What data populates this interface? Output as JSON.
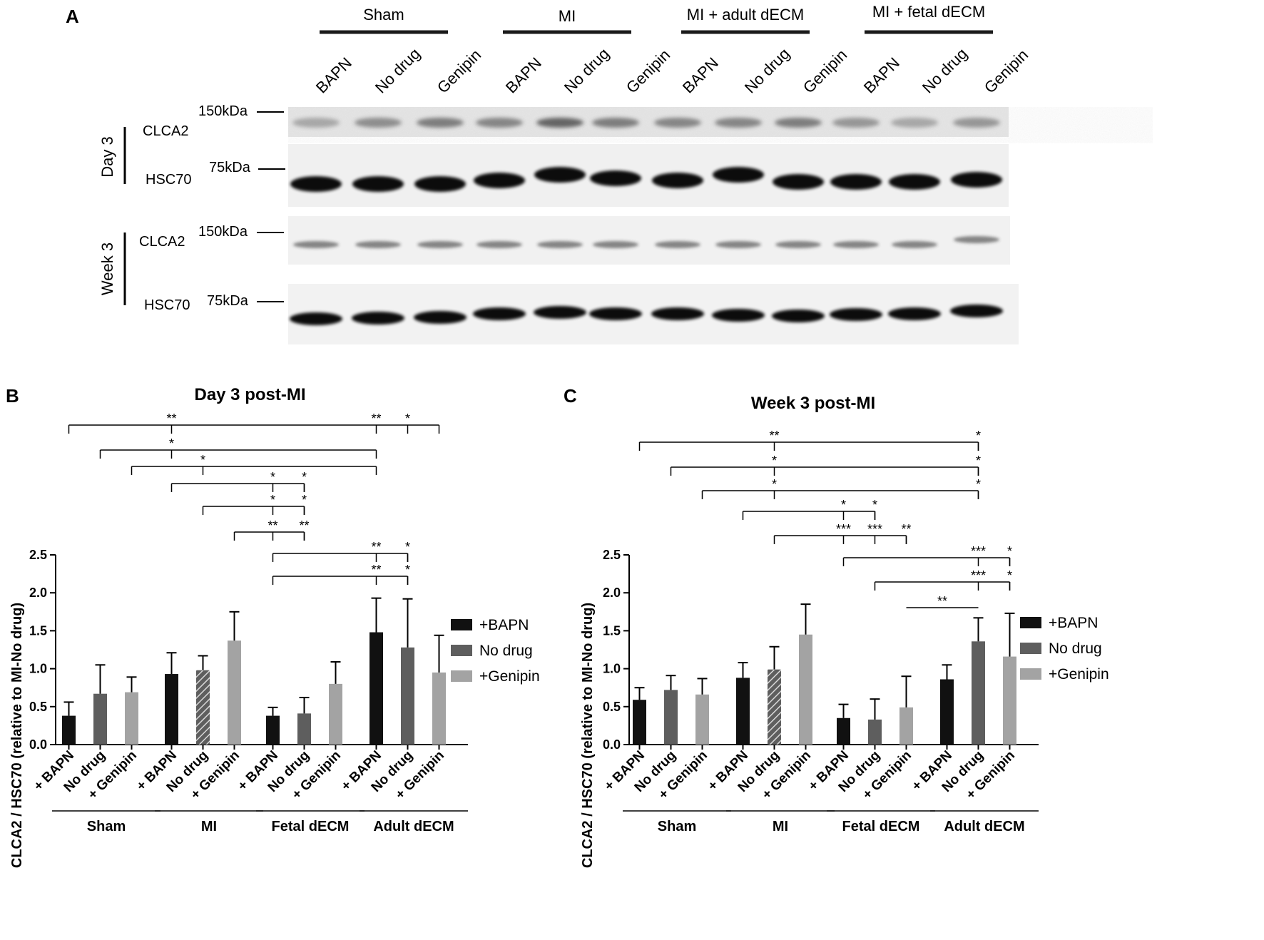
{
  "panel_a": {
    "letter": "A",
    "group_headers": [
      "Sham",
      "MI",
      "MI + adult dECM",
      "MI + fetal dECM"
    ],
    "lane_labels": [
      "BAPN",
      "No drug",
      "Genipin",
      "BAPN",
      "No drug",
      "Genipin",
      "BAPN",
      "No drug",
      "Genipin",
      "BAPN",
      "No drug",
      "Genipin"
    ],
    "timepoints": [
      {
        "label": "Day 3",
        "rows": [
          {
            "protein": "CLCA2",
            "marker": "150kDa"
          },
          {
            "protein": "HSC70",
            "marker": "75kDa"
          }
        ]
      },
      {
        "label": "Week 3",
        "rows": [
          {
            "protein": "CLCA2",
            "marker": "150kDa"
          },
          {
            "protein": "HSC70",
            "marker": "75kDa"
          }
        ]
      }
    ]
  },
  "chart_data": [
    {
      "panel_letter": "B",
      "type": "bar",
      "title": "Day 3 post-MI",
      "ylabel": "CLCA2 / HSC70 (relative to MI-No drug)",
      "ylim": [
        0,
        2.5
      ],
      "yticks": [
        "0.0",
        "0.5",
        "1.0",
        "1.5",
        "2.0",
        "2.5"
      ],
      "groups": [
        "Sham",
        "MI",
        "Fetal dECM",
        "Adult dECM"
      ],
      "tick_labels": [
        "+ BAPN",
        "No drug",
        "+ Genipin"
      ],
      "legend": [
        "+BAPN",
        "No drug",
        "+Genipin"
      ],
      "series": [
        {
          "name": "+BAPN",
          "color": "#111111",
          "values": [
            0.38,
            0.93,
            0.38,
            1.48
          ],
          "errors": [
            0.18,
            0.28,
            0.11,
            0.45
          ]
        },
        {
          "name": "No drug",
          "color": "#5e5e5e",
          "values": [
            0.67,
            0.98,
            0.41,
            1.28
          ],
          "errors": [
            0.38,
            0.19,
            0.21,
            0.64
          ]
        },
        {
          "name": "+Genipin",
          "color": "#a3a3a3",
          "values": [
            0.69,
            1.37,
            0.8,
            0.95
          ],
          "errors": [
            0.2,
            0.38,
            0.29,
            0.49
          ]
        }
      ],
      "hatched_bar": "MI No drug",
      "significance": [
        {
          "from": "Sham +BAPN",
          "to": "Adult dECM +Genipin",
          "marks": [
            {
              "at": "MI +BAPN",
              "text": "**"
            },
            {
              "at": "Adult dECM +BAPN",
              "text": "**"
            },
            {
              "at": "Adult dECM No drug",
              "text": "*"
            }
          ]
        },
        {
          "from": "Sham No drug",
          "to": "Adult dECM +BAPN",
          "marks": [
            {
              "at": "MI +BAPN",
              "text": "*"
            }
          ]
        },
        {
          "from": "Sham +Genipin",
          "to": "Adult dECM +BAPN",
          "marks": [
            {
              "at": "MI No drug",
              "text": "*"
            }
          ]
        },
        {
          "from": "MI +BAPN",
          "to": "Fetal dECM No drug",
          "marks": [
            {
              "at": "Fetal dECM +BAPN",
              "text": "*"
            },
            {
              "at": "Fetal dECM No drug",
              "text": "*"
            }
          ]
        },
        {
          "from": "MI No drug",
          "to": "Fetal dECM No drug",
          "marks": [
            {
              "at": "Fetal dECM +BAPN",
              "text": "*"
            },
            {
              "at": "Fetal dECM No drug",
              "text": "*"
            }
          ]
        },
        {
          "from": "MI +Genipin",
          "to": "Fetal dECM No drug",
          "marks": [
            {
              "at": "Fetal dECM +BAPN",
              "text": "**"
            },
            {
              "at": "Fetal dECM No drug",
              "text": "**"
            }
          ]
        },
        {
          "from": "Fetal dECM +BAPN",
          "to": "Adult dECM No drug",
          "marks": [
            {
              "at": "Adult dECM +BAPN",
              "text": "**"
            },
            {
              "at": "Adult dECM No drug",
              "text": "*"
            }
          ]
        },
        {
          "from": "Fetal dECM +BAPN",
          "to": "Adult dECM No drug",
          "marks": [
            {
              "at": "Adult dECM +BAPN",
              "text": "**"
            },
            {
              "at": "Adult dECM No drug",
              "text": "*"
            }
          ]
        }
      ]
    },
    {
      "panel_letter": "C",
      "type": "bar",
      "title": "Week 3 post-MI",
      "ylabel": "CLCA2 / HSC70 (relative to MI-No drug)",
      "ylim": [
        0,
        2.5
      ],
      "yticks": [
        "0.0",
        "0.5",
        "1.0",
        "1.5",
        "2.0",
        "2.5"
      ],
      "groups": [
        "Sham",
        "MI",
        "Fetal dECM",
        "Adult dECM"
      ],
      "tick_labels": [
        "+ BAPN",
        "No drug",
        "+ Genipin"
      ],
      "legend": [
        "+BAPN",
        "No drug",
        "+Genipin"
      ],
      "series": [
        {
          "name": "+BAPN",
          "color": "#111111",
          "values": [
            0.59,
            0.88,
            0.35,
            0.86
          ],
          "errors": [
            0.16,
            0.2,
            0.18,
            0.19
          ]
        },
        {
          "name": "No drug",
          "color": "#5e5e5e",
          "values": [
            0.72,
            0.99,
            0.33,
            1.36
          ],
          "errors": [
            0.19,
            0.3,
            0.27,
            0.31
          ]
        },
        {
          "name": "+Genipin",
          "color": "#a3a3a3",
          "values": [
            0.66,
            1.45,
            0.49,
            1.16
          ],
          "errors": [
            0.21,
            0.4,
            0.41,
            0.57
          ]
        }
      ],
      "hatched_bar": "MI No drug",
      "significance": [
        {
          "from": "Sham +BAPN",
          "to": "Adult dECM No drug",
          "marks": [
            {
              "at": "MI No drug",
              "text": "**"
            },
            {
              "at": "Adult dECM No drug",
              "text": "*"
            }
          ]
        },
        {
          "from": "Sham No drug",
          "to": "Adult dECM No drug",
          "marks": [
            {
              "at": "MI No drug",
              "text": "*"
            },
            {
              "at": "Adult dECM No drug",
              "text": "*"
            }
          ]
        },
        {
          "from": "Sham +Genipin",
          "to": "Adult dECM No drug",
          "marks": [
            {
              "at": "MI No drug",
              "text": "*"
            },
            {
              "at": "Adult dECM No drug",
              "text": "*"
            }
          ]
        },
        {
          "from": "MI +BAPN",
          "to": "Fetal dECM No drug",
          "marks": [
            {
              "at": "Fetal dECM +BAPN",
              "text": "*"
            },
            {
              "at": "Fetal dECM No drug",
              "text": "*"
            }
          ]
        },
        {
          "from": "MI No drug",
          "to": "Fetal dECM +Genipin",
          "marks": [
            {
              "at": "Fetal dECM +BAPN",
              "text": "***"
            },
            {
              "at": "Fetal dECM No drug",
              "text": "***"
            },
            {
              "at": "Fetal dECM +Genipin",
              "text": "**"
            }
          ]
        },
        {
          "from": "Fetal dECM +BAPN",
          "to": "Adult dECM +Genipin",
          "marks": [
            {
              "at": "Adult dECM No drug",
              "text": "***"
            },
            {
              "at": "Adult dECM +Genipin",
              "text": "*"
            }
          ]
        },
        {
          "from": "Fetal dECM No drug",
          "to": "Adult dECM +Genipin",
          "marks": [
            {
              "at": "Adult dECM No drug",
              "text": "***"
            },
            {
              "at": "Adult dECM +Genipin",
              "text": "*"
            }
          ]
        },
        {
          "from": "Fetal dECM +Genipin",
          "to": "Adult dECM No drug",
          "marks": [
            {
              "at": "MID",
              "text": "**"
            }
          ]
        }
      ]
    }
  ]
}
